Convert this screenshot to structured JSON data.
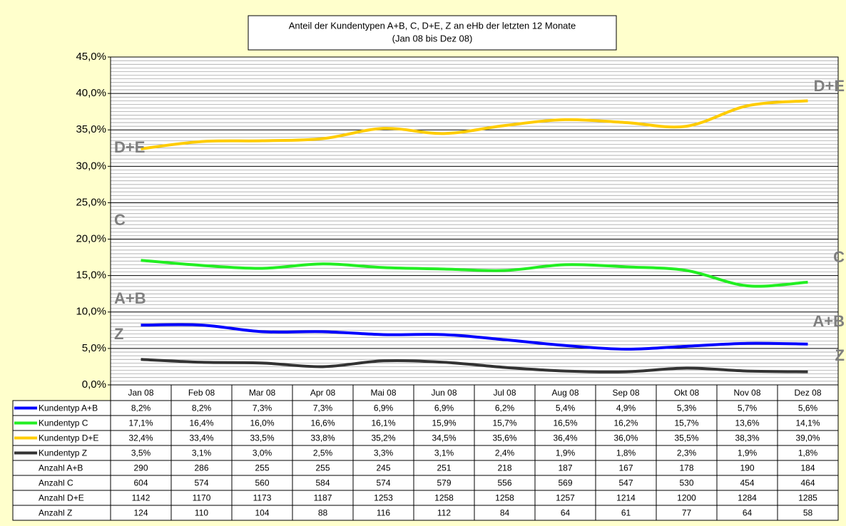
{
  "chart_data": {
    "type": "line",
    "title": "Anteil der Kundentypen A+B, C, D+E, Z an eHb der letzten 12 Monate",
    "subtitle": "(Jan 08 bis Dez 08)",
    "categories": [
      "Jan 08",
      "Feb 08",
      "Mar 08",
      "Apr 08",
      "Mai 08",
      "Jun 08",
      "Jul 08",
      "Aug 08",
      "Sep 08",
      "Okt 08",
      "Nov 08",
      "Dez 08"
    ],
    "ylim": [
      0,
      45
    ],
    "yticks": [
      {
        "value": 0,
        "label": "0,0%"
      },
      {
        "value": 5,
        "label": "5,0%"
      },
      {
        "value": 10,
        "label": "10,0%"
      },
      {
        "value": 15,
        "label": "15,0%"
      },
      {
        "value": 20,
        "label": "20,0%"
      },
      {
        "value": 25,
        "label": "25,0%"
      },
      {
        "value": 30,
        "label": "30,0%"
      },
      {
        "value": 35,
        "label": "35,0%"
      },
      {
        "value": 40,
        "label": "40,0%"
      },
      {
        "value": 45,
        "label": "45,0%"
      }
    ],
    "grid": true,
    "series": [
      {
        "name": "Kundentyp A+B",
        "label": "A+B",
        "color": "#0000ff",
        "values": [
          8.2,
          8.2,
          7.3,
          7.3,
          6.9,
          6.9,
          6.2,
          5.4,
          4.9,
          5.3,
          5.7,
          5.6
        ],
        "value_labels": [
          "8,2%",
          "8,2%",
          "7,3%",
          "7,3%",
          "6,9%",
          "6,9%",
          "6,2%",
          "5,4%",
          "4,9%",
          "5,3%",
          "5,7%",
          "5,6%"
        ]
      },
      {
        "name": "Kundentyp C",
        "label": "C",
        "color": "#22ee22",
        "values": [
          17.1,
          16.4,
          16.0,
          16.6,
          16.1,
          15.9,
          15.7,
          16.5,
          16.2,
          15.7,
          13.6,
          14.1
        ],
        "value_labels": [
          "17,1%",
          "16,4%",
          "16,0%",
          "16,6%",
          "16,1%",
          "15,9%",
          "15,7%",
          "16,5%",
          "16,2%",
          "15,7%",
          "13,6%",
          "14,1%"
        ]
      },
      {
        "name": "Kundentyp D+E",
        "label": "D+E",
        "color": "#ffcc00",
        "values": [
          32.4,
          33.4,
          33.5,
          33.8,
          35.2,
          34.5,
          35.6,
          36.4,
          36.0,
          35.5,
          38.3,
          39.0
        ],
        "value_labels": [
          "32,4%",
          "33,4%",
          "33,5%",
          "33,8%",
          "35,2%",
          "34,5%",
          "35,6%",
          "36,4%",
          "36,0%",
          "35,5%",
          "38,3%",
          "39,0%"
        ]
      },
      {
        "name": "Kundentyp Z",
        "label": "Z",
        "color": "#333333",
        "values": [
          3.5,
          3.1,
          3.0,
          2.5,
          3.3,
          3.1,
          2.4,
          1.9,
          1.8,
          2.3,
          1.9,
          1.8
        ],
        "value_labels": [
          "3,5%",
          "3,1%",
          "3,0%",
          "2,5%",
          "3,3%",
          "3,1%",
          "2,4%",
          "1,9%",
          "1,8%",
          "2,3%",
          "1,9%",
          "1,8%"
        ]
      }
    ],
    "count_rows": [
      {
        "name": "Anzahl A+B",
        "values": [
          290,
          286,
          255,
          255,
          245,
          251,
          218,
          187,
          167,
          178,
          190,
          184
        ]
      },
      {
        "name": "Anzahl C",
        "values": [
          604,
          574,
          560,
          584,
          574,
          579,
          556,
          569,
          547,
          530,
          454,
          464
        ]
      },
      {
        "name": "Anzahl D+E",
        "values": [
          1142,
          1170,
          1173,
          1187,
          1253,
          1258,
          1258,
          1257,
          1214,
          1200,
          1284,
          1285
        ]
      },
      {
        "name": "Anzahl Z",
        "values": [
          124,
          110,
          104,
          88,
          116,
          112,
          84,
          64,
          61,
          77,
          64,
          58
        ]
      }
    ]
  }
}
